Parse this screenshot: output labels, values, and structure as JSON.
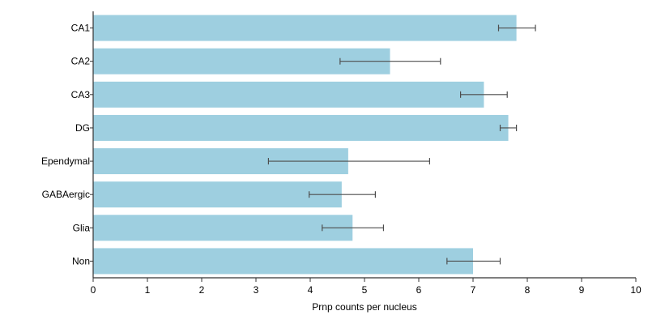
{
  "chart_data": {
    "type": "bar",
    "orientation": "horizontal",
    "categories": [
      "CA1",
      "CA2",
      "CA3",
      "DG",
      "Ependymal",
      "GABAergic",
      "Glia",
      "Non"
    ],
    "values": [
      7.8,
      5.47,
      7.2,
      7.65,
      4.7,
      4.58,
      4.78,
      7.0
    ],
    "error_low": [
      7.47,
      4.55,
      6.77,
      7.5,
      3.23,
      3.98,
      4.22,
      6.52
    ],
    "error_high": [
      8.15,
      6.4,
      7.63,
      7.8,
      6.2,
      5.2,
      5.35,
      7.5
    ],
    "xlabel": "Prnp counts per nucleus",
    "ylabel": "",
    "title": "",
    "xlim": [
      0,
      10
    ],
    "xticks": [
      0,
      1,
      2,
      3,
      4,
      5,
      6,
      7,
      8,
      9,
      10
    ],
    "grid": false,
    "legend": "none",
    "colors": {
      "bar": "#9ecfe0",
      "error_bar": "#4d4d4d",
      "axis": "#333333"
    }
  }
}
